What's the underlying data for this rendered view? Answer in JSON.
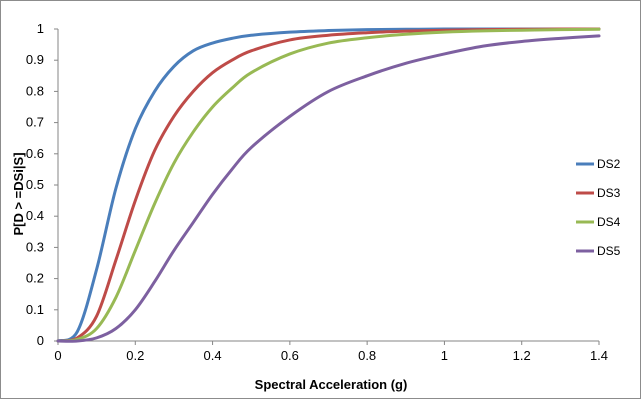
{
  "chart_data": {
    "type": "line",
    "title": "",
    "xlabel": "Spectral Acceleration (g)",
    "ylabel": "P[D > =DSi|S]",
    "xlim": [
      0,
      1.4
    ],
    "ylim": [
      0,
      1
    ],
    "x_ticks": [
      "0",
      "0.2",
      "0.4",
      "0.6",
      "0.8",
      "1",
      "1.2",
      "1.4"
    ],
    "y_ticks": [
      "0",
      "0.1",
      "0.2",
      "0.3",
      "0.4",
      "0.5",
      "0.6",
      "0.7",
      "0.8",
      "0.9",
      "1"
    ],
    "grid": false,
    "legend_position": "right",
    "x": [
      0,
      0.05,
      0.1,
      0.15,
      0.2,
      0.25,
      0.3,
      0.35,
      0.4,
      0.45,
      0.5,
      0.6,
      0.7,
      0.8,
      0.9,
      1.0,
      1.1,
      1.2,
      1.3,
      1.4
    ],
    "series": [
      {
        "name": "DS2",
        "color": "#4a7ebb",
        "values": [
          0,
          0.03,
          0.23,
          0.49,
          0.68,
          0.8,
          0.88,
          0.93,
          0.955,
          0.97,
          0.98,
          0.99,
          0.995,
          0.998,
          0.999,
          1.0,
          1.0,
          1.0,
          1.0,
          1.0
        ]
      },
      {
        "name": "DS3",
        "color": "#be4b48",
        "values": [
          0,
          0.01,
          0.08,
          0.26,
          0.45,
          0.61,
          0.72,
          0.8,
          0.86,
          0.9,
          0.93,
          0.965,
          0.98,
          0.988,
          0.993,
          0.996,
          0.998,
          0.999,
          1.0,
          1.0
        ]
      },
      {
        "name": "DS4",
        "color": "#98b954",
        "values": [
          0,
          0.005,
          0.04,
          0.14,
          0.29,
          0.44,
          0.57,
          0.67,
          0.75,
          0.81,
          0.86,
          0.92,
          0.955,
          0.972,
          0.983,
          0.99,
          0.994,
          0.996,
          0.998,
          0.999
        ]
      },
      {
        "name": "DS5",
        "color": "#7d60a0",
        "values": [
          0,
          0.0,
          0.01,
          0.04,
          0.1,
          0.19,
          0.29,
          0.38,
          0.47,
          0.55,
          0.62,
          0.72,
          0.8,
          0.85,
          0.89,
          0.92,
          0.945,
          0.96,
          0.97,
          0.978
        ]
      }
    ]
  }
}
